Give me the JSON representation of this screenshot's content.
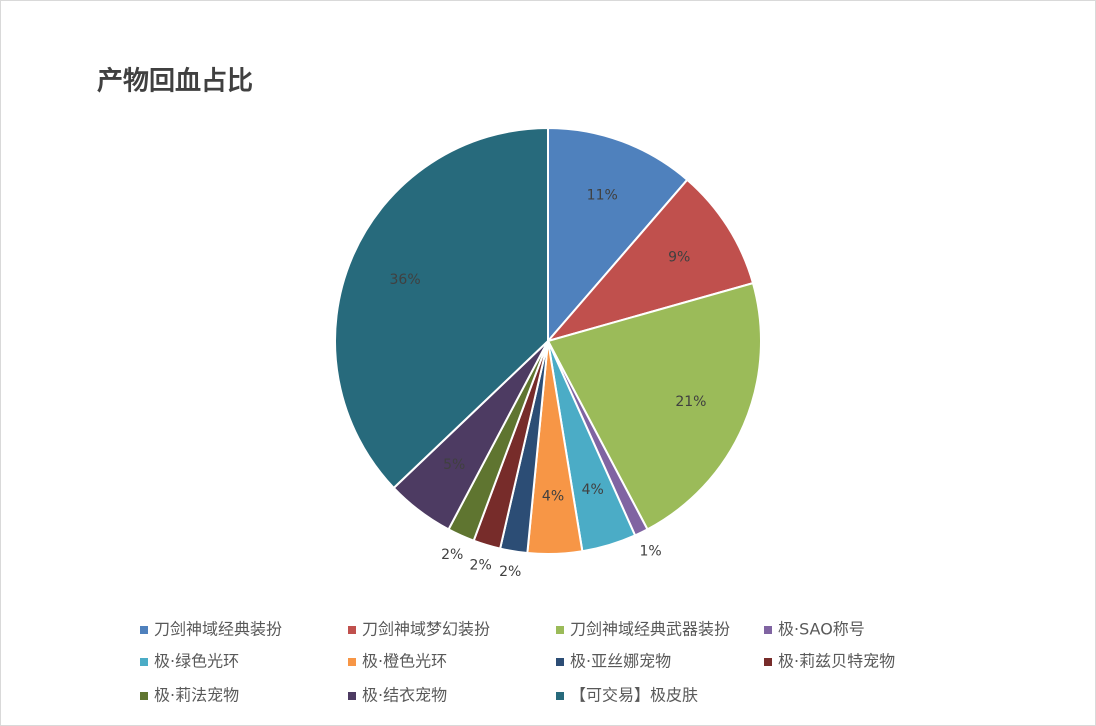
{
  "chart_data": {
    "type": "pie",
    "title": "产物回血占比",
    "categories": [
      "刀剑神域经典装扮",
      "刀剑神域梦幻装扮",
      "刀剑神域经典武器装扮",
      "极·SAO称号",
      "极·绿色光环",
      "极·橙色光环",
      "极·亚丝娜宠物",
      "极·莉兹贝特宠物",
      "极·莉法宠物",
      "极·结衣宠物",
      "【可交易】极皮肤"
    ],
    "values": [
      11,
      9,
      21,
      1,
      4,
      4,
      2,
      2,
      2,
      5,
      36
    ],
    "value_labels": [
      "11%",
      "9%",
      "21%",
      "1%",
      "4%",
      "4%",
      "2%",
      "2%",
      "2%",
      "5%",
      "36%"
    ],
    "colors": [
      "#4f81bd",
      "#c0504d",
      "#9bbb59",
      "#8064a2",
      "#4bacc6",
      "#f79646",
      "#2c4d75",
      "#772c2a",
      "#5f7530",
      "#4d3b62",
      "#276a7c"
    ],
    "legend": "bottom"
  }
}
